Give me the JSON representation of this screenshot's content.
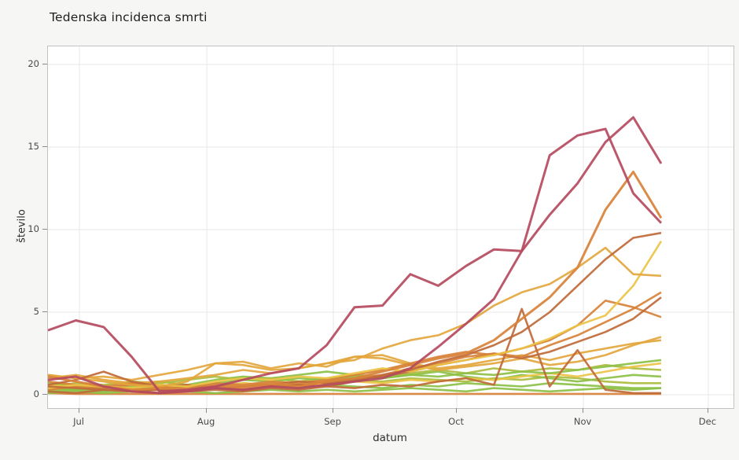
{
  "page": {
    "background_color": "#f6f6f5",
    "plot_background_color": "#ffffff",
    "grid_color": "#e7e7e7",
    "border_color": "#c3c3c3",
    "tick_color": "#8a8a8a",
    "text_color": "#4a4a4a"
  },
  "chart_data": {
    "type": "line",
    "title": "Tedenska incidenca smrti",
    "xlabel": "datum",
    "ylabel": "število",
    "grid": true,
    "legend": "none",
    "x_unit": "week (points are weekly, late June through late November)",
    "n_points": 23,
    "ylim": [
      -0.8,
      21.1
    ],
    "y_ticks": [
      0,
      5,
      10,
      15,
      20
    ],
    "x_ticks": [
      {
        "label": "Jul",
        "week": 1.13
      },
      {
        "label": "Aug",
        "week": 5.7
      },
      {
        "label": "Sep",
        "week": 10.24
      },
      {
        "label": "Oct",
        "week": 14.67
      },
      {
        "label": "Nov",
        "week": 19.21
      },
      {
        "label": "Dec",
        "week": 23.69
      }
    ],
    "series": [
      {
        "name": "series-01",
        "color": "#d8823a",
        "width": 2.6,
        "values": [
          0.1,
          0.05,
          0.05,
          0.05,
          0.05,
          0.05,
          0.05,
          0.05,
          0.05,
          0.05,
          0.05,
          0.05,
          0.05,
          0.05,
          0.05,
          0.05,
          0.05,
          0.05,
          0.05,
          0.05,
          0.05,
          0.05,
          0.05
        ]
      },
      {
        "name": "series-02",
        "color": "#8cc047",
        "width": 2.6,
        "values": [
          0.1,
          0.2,
          0.1,
          0.2,
          0.3,
          0.2,
          0.1,
          0.2,
          0.3,
          0.2,
          0.3,
          0.2,
          0.3,
          0.4,
          0.3,
          0.2,
          0.4,
          0.3,
          0.2,
          0.3,
          0.4,
          0.3,
          0.4
        ]
      },
      {
        "name": "series-03",
        "color": "#8cc047",
        "width": 2.6,
        "values": [
          0.2,
          0.3,
          0.2,
          0.4,
          0.3,
          0.5,
          0.4,
          0.3,
          0.5,
          0.4,
          0.6,
          0.5,
          0.4,
          0.6,
          0.5,
          0.7,
          0.6,
          0.5,
          0.7,
          0.6,
          0.5,
          0.4,
          0.4
        ]
      },
      {
        "name": "series-04",
        "color": "#adbd40",
        "width": 2.6,
        "values": [
          0.3,
          0.4,
          0.3,
          0.5,
          0.4,
          0.6,
          0.5,
          0.7,
          0.6,
          0.8,
          0.7,
          0.9,
          0.8,
          1.0,
          0.9,
          0.8,
          1.0,
          0.9,
          1.1,
          1.0,
          0.8,
          0.7,
          0.7
        ]
      },
      {
        "name": "series-05",
        "color": "#8cc047",
        "width": 2.6,
        "values": [
          0.7,
          0.5,
          0.4,
          0.6,
          0.8,
          0.6,
          0.9,
          1.1,
          1.0,
          1.2,
          1.4,
          1.2,
          1.0,
          1.2,
          1.4,
          1.1,
          0.9,
          1.2,
          1.0,
          0.8,
          1.0,
          1.2,
          1.1
        ]
      },
      {
        "name": "series-06",
        "color": "#adbd40",
        "width": 2.6,
        "values": [
          0.5,
          0.7,
          0.6,
          0.8,
          0.7,
          0.9,
          1.1,
          0.9,
          1.0,
          0.8,
          1.0,
          1.2,
          1.1,
          1.3,
          1.5,
          1.3,
          1.6,
          1.4,
          1.6,
          1.5,
          1.8,
          1.6,
          1.5
        ]
      },
      {
        "name": "series-07",
        "color": "#ecc345",
        "width": 2.6,
        "values": [
          0.6,
          0.4,
          0.5,
          0.3,
          0.4,
          0.6,
          0.5,
          0.7,
          0.6,
          0.5,
          0.7,
          0.8,
          0.7,
          0.9,
          0.8,
          1.0,
          0.9,
          1.1,
          1.3,
          1.1,
          1.4,
          1.7,
          1.9
        ]
      },
      {
        "name": "series-08",
        "color": "#8cc047",
        "width": 2.6,
        "values": [
          0.4,
          0.3,
          0.5,
          0.4,
          0.6,
          0.5,
          0.7,
          0.9,
          0.8,
          1.0,
          0.9,
          1.1,
          1.0,
          1.2,
          1.1,
          1.3,
          1.2,
          1.4,
          1.3,
          1.5,
          1.7,
          1.9,
          2.1
        ]
      },
      {
        "name": "series-09",
        "color": "#e3a63c",
        "width": 2.6,
        "values": [
          1.0,
          1.2,
          0.9,
          0.7,
          0.8,
          1.0,
          1.2,
          1.5,
          1.3,
          1.6,
          1.9,
          2.3,
          2.4,
          1.9,
          1.6,
          1.8,
          2.1,
          2.4,
          2.1,
          2.5,
          2.8,
          3.1,
          3.3
        ]
      },
      {
        "name": "series-10",
        "color": "#e3a63c",
        "width": 2.6,
        "values": [
          1.2,
          1.0,
          1.1,
          0.9,
          1.2,
          1.5,
          1.9,
          2.0,
          1.6,
          1.9,
          1.7,
          2.3,
          2.2,
          1.8,
          1.5,
          1.7,
          1.9,
          2.2,
          1.8,
          2.0,
          2.4,
          3.0,
          3.5
        ]
      },
      {
        "name": "series-11",
        "color": "#d8823a",
        "width": 2.6,
        "values": [
          0.8,
          0.6,
          0.5,
          0.7,
          0.6,
          0.5,
          0.7,
          0.6,
          0.8,
          0.7,
          0.9,
          1.2,
          1.5,
          1.9,
          2.3,
          2.6,
          2.4,
          2.8,
          3.3,
          4.2,
          5.7,
          5.3,
          4.7
        ]
      },
      {
        "name": "series-12",
        "color": "#c06a3a",
        "width": 2.6,
        "values": [
          0.6,
          0.9,
          1.4,
          0.8,
          0.5,
          0.6,
          0.4,
          0.5,
          0.6,
          0.8,
          0.7,
          0.9,
          1.1,
          1.4,
          1.8,
          2.1,
          2.5,
          2.2,
          2.6,
          3.2,
          3.8,
          4.6,
          5.9
        ]
      },
      {
        "name": "series-13",
        "color": "#d8823a",
        "width": 2.6,
        "values": [
          0.3,
          0.5,
          0.4,
          0.6,
          0.5,
          0.4,
          0.6,
          0.5,
          0.7,
          0.6,
          0.8,
          1.0,
          1.2,
          1.6,
          1.9,
          2.3,
          2.5,
          2.3,
          3.0,
          3.6,
          4.4,
          5.2,
          6.2
        ]
      },
      {
        "name": "series-14",
        "color": "#c06a3a",
        "width": 2.6,
        "values": [
          0.2,
          0.1,
          0.3,
          0.2,
          0.1,
          0.2,
          0.3,
          0.2,
          0.4,
          0.3,
          0.5,
          0.4,
          0.6,
          0.5,
          0.8,
          1.0,
          0.6,
          5.2,
          0.5,
          2.7,
          0.3,
          0.1,
          0.1
        ]
      },
      {
        "name": "series-15",
        "color": "#ecc345",
        "width": 2.6,
        "values": [
          0.4,
          0.6,
          0.5,
          0.4,
          0.6,
          0.5,
          0.8,
          1.0,
          0.9,
          1.1,
          1.0,
          1.3,
          1.6,
          1.4,
          1.8,
          2.1,
          2.4,
          2.8,
          3.4,
          4.2,
          4.8,
          6.6,
          9.3
        ]
      },
      {
        "name": "series-16",
        "color": "#e3a63c",
        "width": 2.6,
        "values": [
          1.2,
          1.0,
          0.8,
          0.6,
          0.5,
          0.8,
          1.9,
          1.8,
          1.5,
          1.6,
          1.9,
          2.1,
          2.8,
          3.3,
          3.6,
          4.3,
          5.4,
          6.2,
          6.7,
          7.7,
          8.9,
          7.3,
          7.2
        ]
      },
      {
        "name": "series-17",
        "color": "#c06a3a",
        "width": 2.6,
        "values": [
          0.5,
          0.4,
          0.3,
          0.2,
          0.3,
          0.2,
          0.4,
          0.3,
          0.5,
          0.6,
          0.5,
          0.8,
          1.2,
          1.5,
          2.0,
          2.4,
          3.0,
          3.8,
          5.0,
          6.6,
          8.2,
          9.5,
          9.8
        ]
      },
      {
        "name": "series-18",
        "color": "#d8823a",
        "width": 3,
        "values": [
          1.1,
          0.8,
          0.5,
          0.3,
          0.4,
          0.3,
          0.5,
          0.4,
          0.6,
          0.5,
          0.8,
          1.0,
          1.4,
          1.8,
          2.2,
          2.5,
          3.3,
          4.6,
          5.9,
          7.7,
          11.2,
          13.5,
          10.7
        ]
      },
      {
        "name": "series-19",
        "color": "#b54a5e",
        "width": 3,
        "values": [
          0.9,
          1.1,
          0.5,
          0.2,
          0.1,
          0.2,
          0.4,
          0.3,
          0.5,
          0.4,
          0.6,
          0.8,
          1.0,
          1.6,
          2.9,
          4.3,
          5.8,
          8.7,
          10.9,
          12.8,
          15.3,
          16.8,
          14.0
        ]
      },
      {
        "name": "series-20",
        "color": "#b54a5e",
        "width": 3,
        "values": [
          3.9,
          4.5,
          4.1,
          2.3,
          0.2,
          0.3,
          0.5,
          0.9,
          1.3,
          1.6,
          3.0,
          5.3,
          5.4,
          7.3,
          6.6,
          7.8,
          8.8,
          8.7,
          14.5,
          15.7,
          16.1,
          12.2,
          10.4
        ]
      }
    ]
  }
}
